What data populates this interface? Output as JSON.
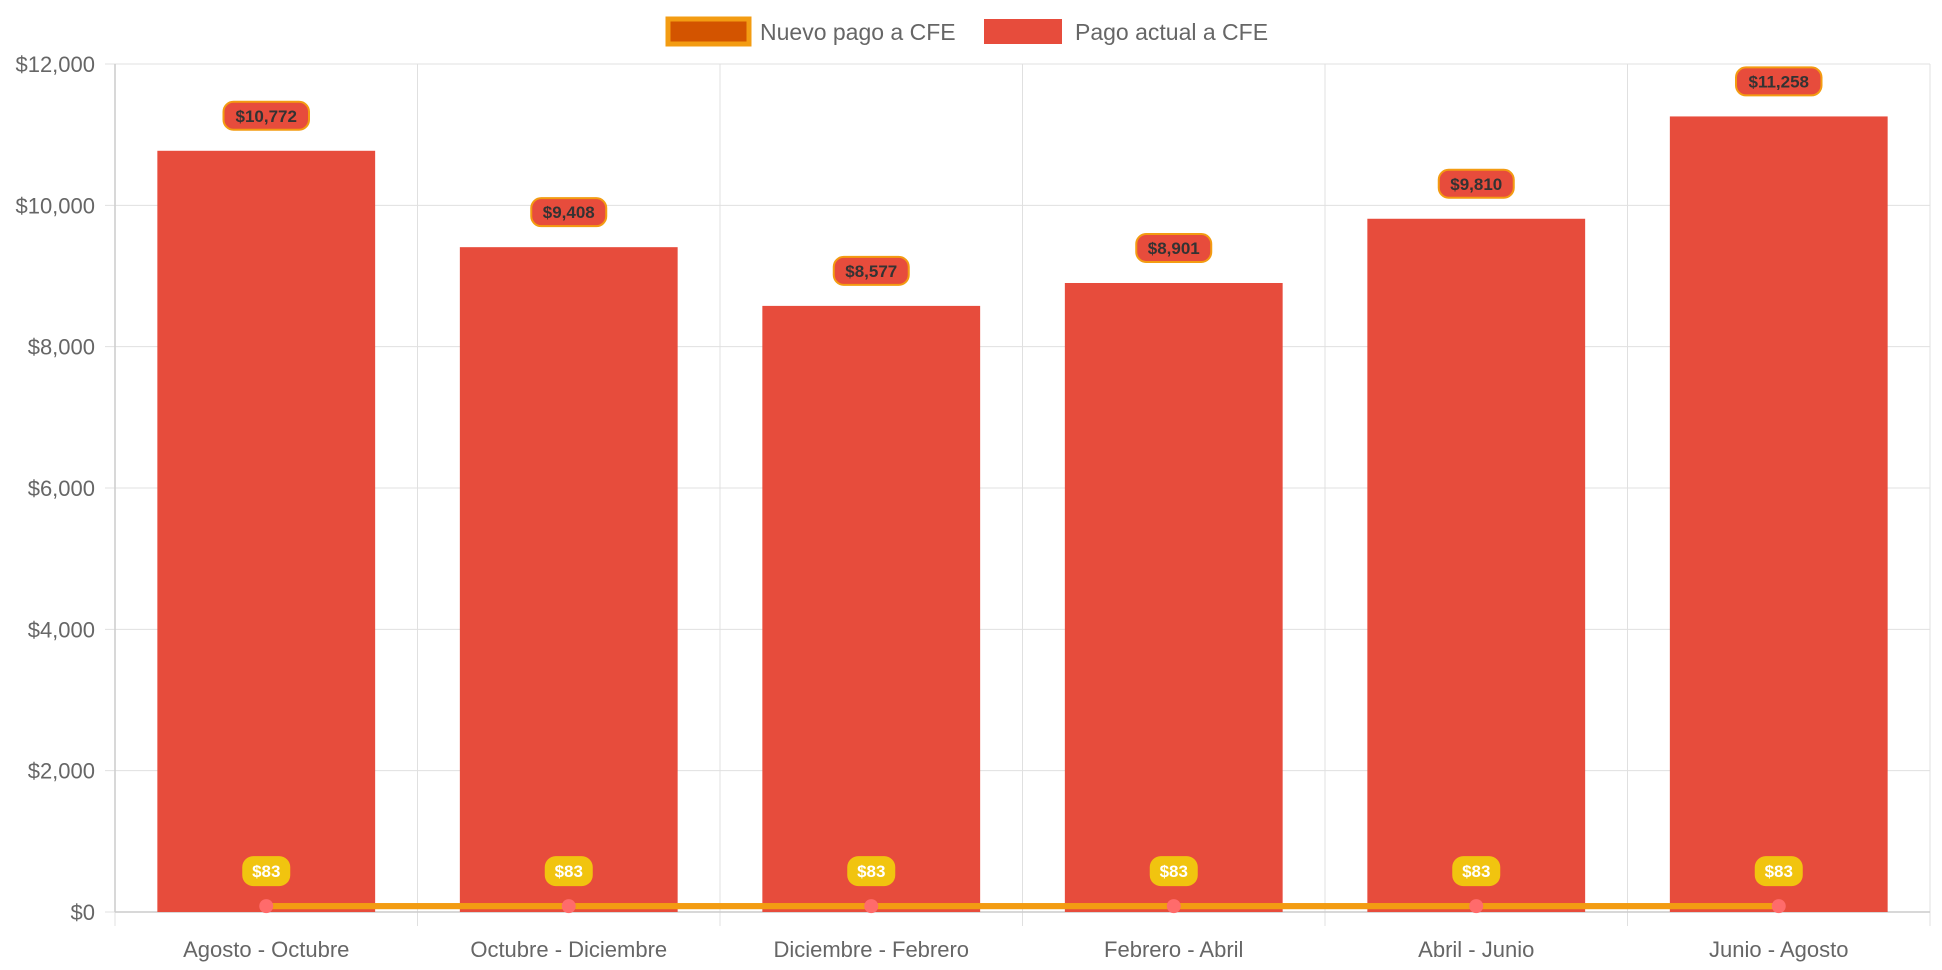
{
  "chart_data": {
    "type": "bar",
    "title": "",
    "xlabel": "",
    "ylabel": "",
    "categories": [
      "Agosto - Octubre",
      "Octubre - Diciembre",
      "Diciembre - Febrero",
      "Febrero - Abril",
      "Abril - Junio",
      "Junio - Agosto"
    ],
    "ylim": [
      0,
      12000
    ],
    "y_ticks": [
      "$0",
      "$2,000",
      "$4,000",
      "$6,000",
      "$8,000",
      "$10,000",
      "$12,000"
    ],
    "grid": true,
    "legend_position": "top-center",
    "series": [
      {
        "name": "Nuevo pago a CFE",
        "type": "line",
        "values": [
          83,
          83,
          83,
          83,
          83,
          83
        ],
        "data_labels": [
          "$83",
          "$83",
          "$83",
          "$83",
          "$83",
          "$83"
        ],
        "line_color": "#f39c12",
        "legend_fill": "#d35400",
        "point_color": "#ff6b6b",
        "label_bg": "#f1c40f"
      },
      {
        "name": "Pago actual a CFE",
        "type": "bar",
        "values": [
          10772,
          9408,
          8577,
          8901,
          9810,
          11258
        ],
        "data_labels": [
          "$10,772",
          "$9,408",
          "$8,577",
          "$8,901",
          "$9,810",
          "$11,258"
        ],
        "bar_color": "#e74c3c",
        "label_border": "#f39c12"
      }
    ]
  }
}
